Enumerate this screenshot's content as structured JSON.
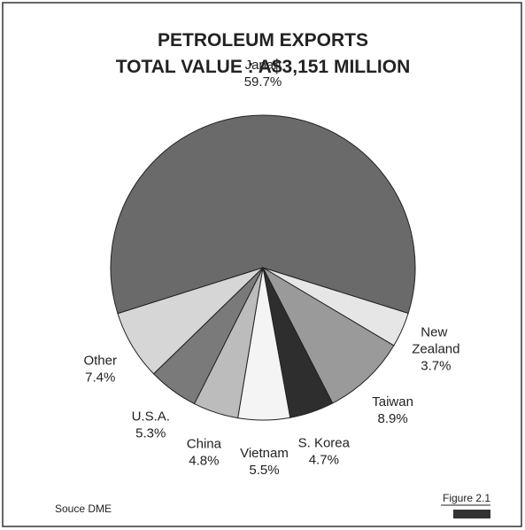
{
  "chart_data": {
    "type": "pie",
    "title": [
      "PETROLEUM EXPORTS",
      "TOTAL VALUE : A$3,151 MILLION"
    ],
    "categories": [
      "Japan",
      "New Zealand",
      "Taiwan",
      "S. Korea",
      "Vietnam",
      "China",
      "U.S.A.",
      "Other"
    ],
    "values": [
      59.7,
      3.7,
      8.9,
      4.7,
      5.5,
      4.8,
      5.3,
      7.4
    ],
    "value_labels": [
      "59.7%",
      "3.7%",
      "8.9%",
      "4.7%",
      "5.5%",
      "4.8%",
      "5.3%",
      "7.4%"
    ],
    "colors": [
      "#6a6a6a",
      "#e6e6e6",
      "#9a9a9a",
      "#2e2e2e",
      "#f4f4f4",
      "#bcbcbc",
      "#7a7a7a",
      "#d6d6d6"
    ],
    "source": "Souce DME",
    "figure": "Figure 2.1"
  }
}
